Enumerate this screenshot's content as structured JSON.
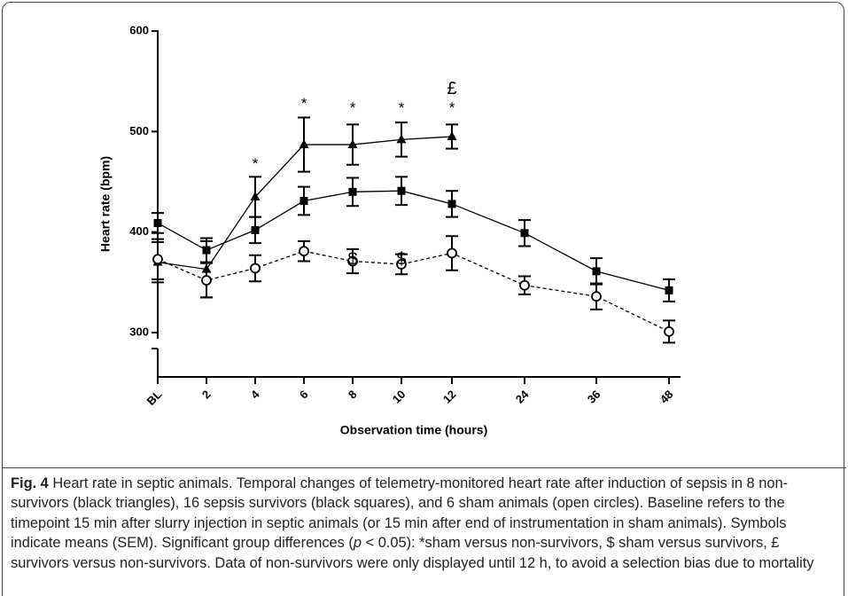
{
  "chart_data": {
    "type": "line",
    "x_label": "Observation time (hours)",
    "y_label": "Heart rate (bpm)",
    "categories": [
      "BL",
      "2",
      "4",
      "6",
      "8",
      "10",
      "12",
      "24",
      "36",
      "48"
    ],
    "ylim": [
      300,
      600
    ],
    "yticks": [
      300,
      400,
      500,
      600
    ],
    "series": [
      {
        "marker": "triangle",
        "color": "#000000",
        "dashed": false,
        "values": [
          370,
          363,
          435,
          487,
          487,
          492,
          495,
          null,
          null,
          null
        ],
        "errors": [
          20,
          28,
          20,
          27,
          20,
          17,
          12,
          null,
          null,
          null
        ]
      },
      {
        "marker": "square",
        "color": "#000000",
        "dashed": false,
        "values": [
          409,
          382,
          402,
          431,
          440,
          441,
          428,
          399,
          361,
          342
        ],
        "errors": [
          10,
          12,
          13,
          14,
          14,
          14,
          13,
          13,
          13,
          11
        ]
      },
      {
        "marker": "circle",
        "color": "#000000",
        "dashed": true,
        "values": [
          373,
          352,
          364,
          381,
          371,
          368,
          379,
          347,
          336,
          301
        ],
        "errors": [
          20,
          17,
          13,
          10,
          12,
          10,
          17,
          9,
          13,
          11
        ]
      }
    ],
    "annotations": [
      {
        "text": "*",
        "x": "4",
        "y": 467
      },
      {
        "text": "*",
        "x": "6",
        "y": 527
      },
      {
        "text": "*",
        "x": "8",
        "y": 523
      },
      {
        "text": "*",
        "x": "10",
        "y": 523
      },
      {
        "text": "*",
        "x": "12",
        "y": 523
      },
      {
        "text": "£",
        "x": "12",
        "y": 542
      },
      {
        "text": "$",
        "x": "8",
        "y": 372
      },
      {
        "text": "$",
        "x": "10",
        "y": 372
      }
    ]
  },
  "caption": {
    "label": "Fig. 4",
    "text_before": " Heart rate in septic animals. Temporal changes of telemetry-monitored heart rate after induction of sepsis in 8 non-survivors (black triangles), 16 sepsis survivors (black squares), and 6 sham animals (open circles). Baseline refers to the timepoint 15 min after slurry injection in septic animals (or 15 min after end of instrumentation in sham animals). Symbols indicate means (SEM). Significant group differences (",
    "italic": "p",
    "text_after": " < 0.05): *sham versus non-survivors, $ sham versus survivors, £ survivors versus non-survivors. Data of non-survivors were only displayed until 12 h, to avoid a selection bias due to mortality"
  }
}
